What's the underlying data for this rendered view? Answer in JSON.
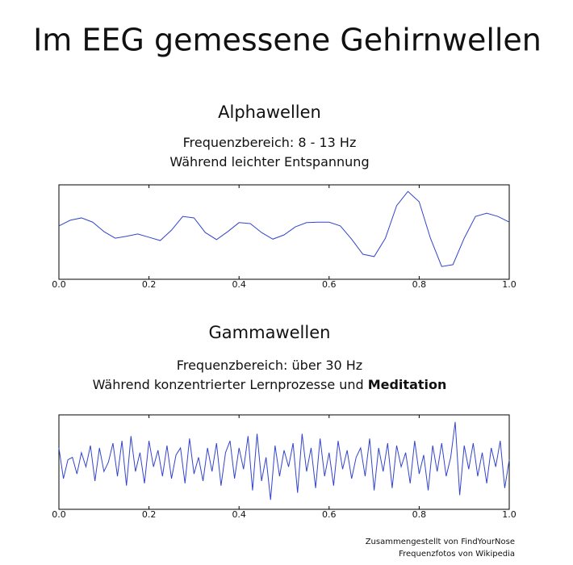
{
  "title": "Im EEG gemessene Gehirnwellen",
  "credits": [
    "Zusammengestellt von FindYourNose",
    "Frequenzfotos von Wikipedia"
  ],
  "chart_data": [
    {
      "type": "line",
      "title": "Alphawellen",
      "subtitle": [
        [
          "Frequenzbereich: 8 - 13 Hz"
        ],
        [
          "Während leichter Entspannung"
        ]
      ],
      "color": "#3344cc",
      "x": [
        0,
        0.025,
        0.05,
        0.075,
        0.1,
        0.125,
        0.15,
        0.175,
        0.2,
        0.225,
        0.25,
        0.275,
        0.3,
        0.325,
        0.35,
        0.375,
        0.4,
        0.425,
        0.45,
        0.475,
        0.5,
        0.525,
        0.55,
        0.575,
        0.6,
        0.625,
        0.65,
        0.675,
        0.7,
        0.725,
        0.75,
        0.775,
        0.8,
        0.825,
        0.85,
        0.875,
        0.9,
        0.925,
        0.95,
        0.975,
        1.0
      ],
      "values": [
        0.13,
        0.25,
        0.3,
        0.21,
        0.01,
        -0.13,
        -0.09,
        -0.04,
        -0.11,
        -0.18,
        0.04,
        0.33,
        0.3,
        -0.01,
        -0.16,
        0.01,
        0.2,
        0.18,
        -0.01,
        -0.15,
        -0.06,
        0.11,
        0.2,
        0.21,
        0.21,
        0.13,
        -0.15,
        -0.47,
        -0.52,
        -0.13,
        0.56,
        0.86,
        0.64,
        -0.13,
        -0.73,
        -0.69,
        -0.13,
        0.33,
        0.4,
        0.33,
        0.21
      ],
      "xlim": [
        0,
        1
      ],
      "ylim": [
        -1,
        1
      ],
      "xticks": [
        {
          "value": 0,
          "label": "0.0"
        },
        0.2,
        0.4,
        0.6,
        0.8,
        {
          "value": 1,
          "label": "1.0"
        }
      ]
    },
    {
      "type": "line",
      "title": "Gammawellen",
      "subtitle": [
        [
          "Frequenzbereich: über 30 Hz"
        ],
        [
          "Während konzentrierter Lernprozesse und",
          "Meditation"
        ]
      ],
      "color": "#3344cc",
      "x": [
        0,
        0.01,
        0.02,
        0.03,
        0.04,
        0.05,
        0.06,
        0.07,
        0.08,
        0.09,
        0.1,
        0.11,
        0.12,
        0.13,
        0.14,
        0.15,
        0.16,
        0.17,
        0.18,
        0.19,
        0.2,
        0.21,
        0.22,
        0.23,
        0.24,
        0.25,
        0.26,
        0.27,
        0.28,
        0.29,
        0.3,
        0.31,
        0.32,
        0.33,
        0.34,
        0.35,
        0.36,
        0.37,
        0.38,
        0.39,
        0.4,
        0.41,
        0.42,
        0.43,
        0.44,
        0.45,
        0.46,
        0.47,
        0.48,
        0.49,
        0.5,
        0.51,
        0.52,
        0.53,
        0.54,
        0.55,
        0.56,
        0.57,
        0.58,
        0.59,
        0.6,
        0.61,
        0.62,
        0.63,
        0.64,
        0.65,
        0.66,
        0.67,
        0.68,
        0.69,
        0.7,
        0.71,
        0.72,
        0.73,
        0.74,
        0.75,
        0.76,
        0.77,
        0.78,
        0.79,
        0.8,
        0.81,
        0.82,
        0.83,
        0.84,
        0.85,
        0.86,
        0.87,
        0.88,
        0.89,
        0.9,
        0.91,
        0.92,
        0.93,
        0.94,
        0.95,
        0.96,
        0.97,
        0.98,
        0.99,
        1.0
      ],
      "values": [
        0.3,
        -0.35,
        0.05,
        0.1,
        -0.25,
        0.2,
        -0.1,
        0.35,
        -0.4,
        0.3,
        -0.2,
        0.0,
        0.4,
        -0.3,
        0.45,
        -0.5,
        0.55,
        -0.2,
        0.2,
        -0.45,
        0.45,
        -0.1,
        0.25,
        -0.3,
        0.35,
        -0.35,
        0.15,
        0.3,
        -0.45,
        0.5,
        -0.25,
        0.1,
        -0.4,
        0.3,
        -0.2,
        0.4,
        -0.5,
        0.2,
        0.45,
        -0.35,
        0.3,
        -0.15,
        0.55,
        -0.6,
        0.6,
        -0.4,
        0.1,
        -0.8,
        0.35,
        -0.3,
        0.25,
        -0.1,
        0.4,
        -0.65,
        0.6,
        -0.2,
        0.3,
        -0.55,
        0.5,
        -0.3,
        0.2,
        -0.5,
        0.45,
        -0.15,
        0.25,
        -0.35,
        0.1,
        0.3,
        -0.3,
        0.5,
        -0.6,
        0.3,
        -0.2,
        0.4,
        -0.55,
        0.35,
        -0.1,
        0.2,
        -0.45,
        0.45,
        -0.25,
        0.15,
        -0.6,
        0.35,
        -0.2,
        0.4,
        -0.3,
        0.1,
        0.85,
        -0.7,
        0.35,
        -0.15,
        0.4,
        -0.3,
        0.2,
        -0.45,
        0.3,
        -0.1,
        0.45,
        -0.55,
        0.05
      ],
      "xlim": [
        0,
        1
      ],
      "ylim": [
        -1,
        1
      ],
      "xticks": [
        {
          "value": 0,
          "label": "0.0"
        },
        0.2,
        0.4,
        0.6,
        0.8,
        {
          "value": 1,
          "label": "1.0"
        }
      ]
    }
  ]
}
